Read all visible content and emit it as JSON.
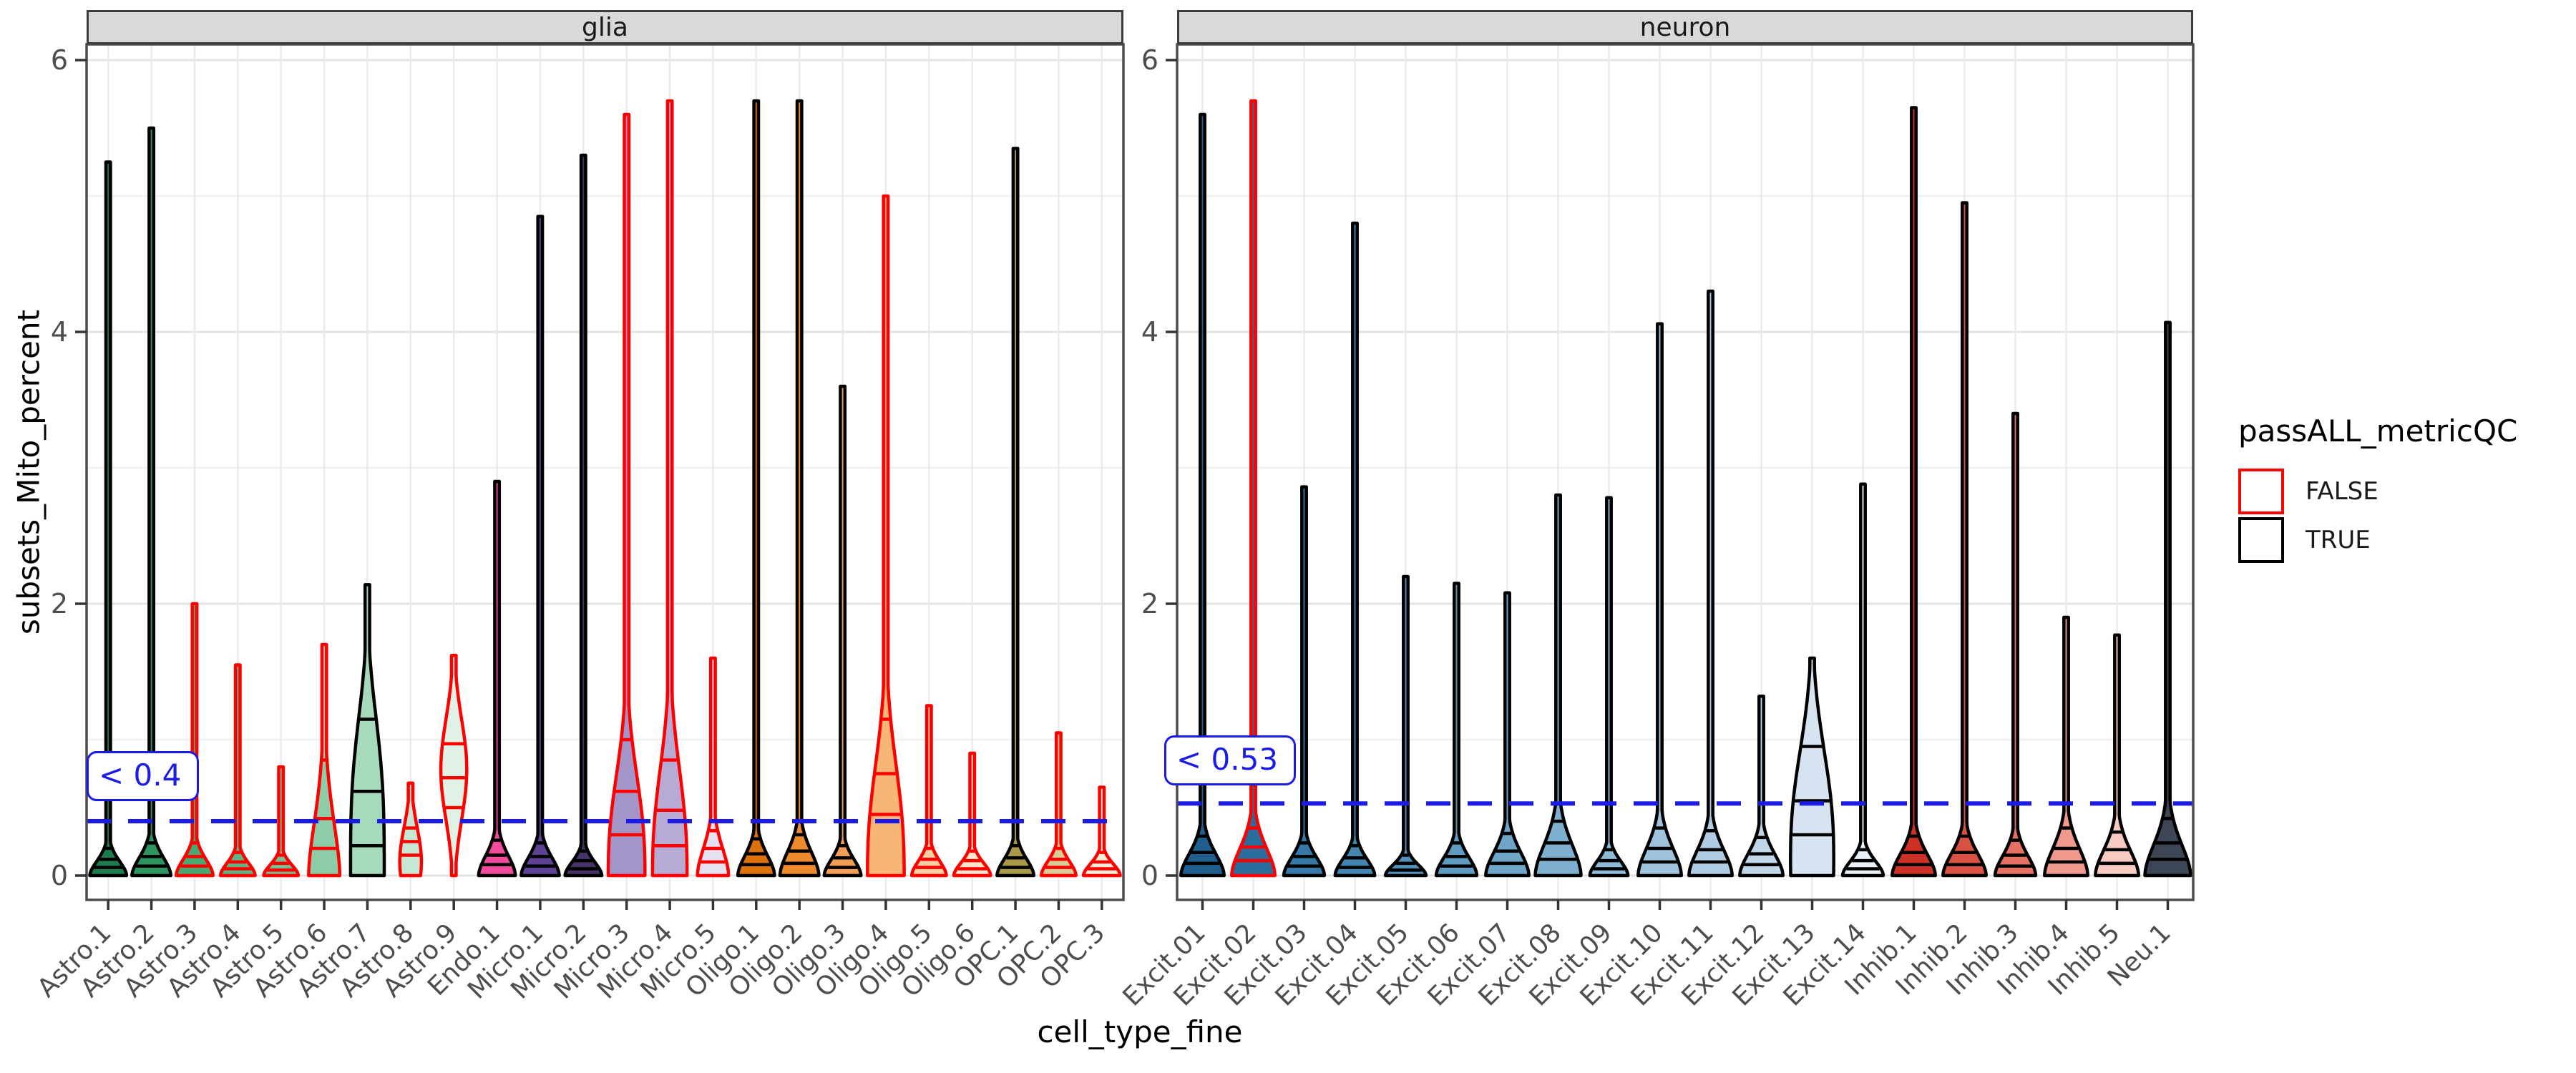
{
  "chart_data": {
    "type": "violin",
    "xlabel": "cell_type_fine",
    "ylabel": "subsets_Mito_percent",
    "y_ticks": [
      0,
      2,
      4,
      6
    ],
    "y_minor_gridlines": [
      1,
      3,
      5
    ],
    "ylim": [
      0,
      6.2
    ],
    "legend": {
      "title": "passALL_metricQC",
      "entries": [
        {
          "label": "FALSE",
          "color": "#FF0000"
        },
        {
          "label": "TRUE",
          "color": "#000000"
        }
      ]
    },
    "colors": {
      "threshold_blue": "#1B1BE8",
      "grid_major": "#E4E4E4",
      "grid_minor": "#F0F0F0",
      "grid_vertical": "#EBEBEB",
      "panel_border": "#4D4D4D",
      "strip_bg": "#D9D9D9",
      "tick_text": "#4D4D4D",
      "outline_true": "#000000",
      "outline_false": "#FF0000"
    },
    "facets": [
      {
        "label": "glia",
        "threshold": {
          "value": 0.4,
          "label": "< 0.4"
        },
        "violins": [
          {
            "label": "Astro.1",
            "fill": "#1E7B4D",
            "pass": true,
            "max": 5.25,
            "b": 0.16,
            "w": 0.85,
            "q": [
              0.06,
              0.12,
              0.2
            ]
          },
          {
            "label": "Astro.2",
            "fill": "#2F9560",
            "pass": true,
            "max": 5.5,
            "b": 0.2,
            "w": 0.9,
            "q": [
              0.07,
              0.14,
              0.24
            ]
          },
          {
            "label": "Astro.3",
            "fill": "#49A973",
            "pass": false,
            "max": 2.0,
            "b": 0.18,
            "w": 0.85,
            "q": [
              0.07,
              0.14,
              0.24
            ]
          },
          {
            "label": "Astro.4",
            "fill": "#5FB685",
            "pass": false,
            "max": 1.55,
            "b": 0.14,
            "w": 0.8,
            "q": [
              0.05,
              0.1,
              0.17
            ]
          },
          {
            "label": "Astro.5",
            "fill": "#74C193",
            "pass": false,
            "max": 0.8,
            "b": 0.12,
            "w": 0.8,
            "q": [
              0.04,
              0.09,
              0.15
            ]
          },
          {
            "label": "Astro.6",
            "fill": "#8CCDA7",
            "pass": false,
            "max": 1.7,
            "b": 0.62,
            "p": 1.7,
            "w": 0.72,
            "q": [
              0.2,
              0.42,
              0.85
            ]
          },
          {
            "label": "Astro.7",
            "fill": "#A7D9BB",
            "pass": true,
            "max": 2.14,
            "b": 1.32,
            "p": 3.2,
            "w": 0.78,
            "q": [
              0.22,
              0.62,
              1.15
            ]
          },
          {
            "label": "Astro.8",
            "fill": "#C6E7D1",
            "pass": false,
            "max": 0.68,
            "b": 0.36,
            "p": 2.0,
            "c": 0.1,
            "w": 0.5,
            "q": [
              0.15,
              0.25,
              0.35
            ]
          },
          {
            "label": "Astro.9",
            "fill": "#E0F2E6",
            "pass": false,
            "max": 1.62,
            "b": 0.52,
            "p": 2.0,
            "c": 0.78,
            "w": 0.6,
            "q": [
              0.5,
              0.72,
              0.97
            ]
          },
          {
            "label": "Endo.1",
            "fill": "#F24B9B",
            "pass": true,
            "max": 2.9,
            "b": 0.22,
            "w": 0.85,
            "q": [
              0.08,
              0.15,
              0.26
            ]
          },
          {
            "label": "Micro.1",
            "fill": "#5E4394",
            "pass": true,
            "max": 4.85,
            "b": 0.2,
            "w": 0.88,
            "q": [
              0.07,
              0.14,
              0.24
            ]
          },
          {
            "label": "Micro.2",
            "fill": "#473366",
            "pass": true,
            "max": 5.3,
            "b": 0.15,
            "w": 0.85,
            "q": [
              0.05,
              0.11,
              0.18
            ]
          },
          {
            "label": "Micro.3",
            "fill": "#A495C9",
            "pass": false,
            "max": 5.6,
            "b": 0.92,
            "p": 2.4,
            "w": 0.85,
            "q": [
              0.3,
              0.62,
              1.0
            ]
          },
          {
            "label": "Micro.4",
            "fill": "#B7AAD4",
            "pass": false,
            "max": 5.7,
            "b": 0.98,
            "p": 2.4,
            "w": 0.8,
            "q": [
              0.22,
              0.48,
              0.85
            ]
          },
          {
            "label": "Micro.5",
            "fill": "#E6E1F2",
            "pass": false,
            "max": 1.6,
            "b": 0.3,
            "w": 0.72,
            "q": [
              0.1,
              0.2,
              0.33
            ]
          },
          {
            "label": "Oligo.1",
            "fill": "#DD720C",
            "pass": true,
            "max": 5.7,
            "b": 0.22,
            "w": 0.85,
            "q": [
              0.08,
              0.16,
              0.27
            ]
          },
          {
            "label": "Oligo.2",
            "fill": "#EE8A2E",
            "pass": true,
            "max": 5.7,
            "b": 0.26,
            "w": 0.9,
            "q": [
              0.09,
              0.18,
              0.3
            ]
          },
          {
            "label": "Oligo.3",
            "fill": "#F29E55",
            "pass": true,
            "max": 3.6,
            "b": 0.18,
            "w": 0.85,
            "q": [
              0.06,
              0.13,
              0.22
            ]
          },
          {
            "label": "Oligo.4",
            "fill": "#F7B578",
            "pass": false,
            "max": 5.0,
            "b": 1.02,
            "p": 2.4,
            "w": 0.85,
            "q": [
              0.45,
              0.75,
              1.15
            ]
          },
          {
            "label": "Oligo.5",
            "fill": "#FACFA3",
            "pass": false,
            "max": 1.25,
            "b": 0.16,
            "w": 0.8,
            "q": [
              0.06,
              0.12,
              0.2
            ]
          },
          {
            "label": "Oligo.6",
            "fill": "#FDE7CF",
            "pass": false,
            "max": 0.9,
            "b": 0.14,
            "w": 0.85,
            "q": [
              0.05,
              0.11,
              0.18
            ]
          },
          {
            "label": "OPC.1",
            "fill": "#A99A4A",
            "pass": true,
            "max": 5.35,
            "b": 0.18,
            "w": 0.85,
            "q": [
              0.06,
              0.13,
              0.22
            ]
          },
          {
            "label": "OPC.2",
            "fill": "#D6CD96",
            "pass": false,
            "max": 1.05,
            "b": 0.16,
            "w": 0.8,
            "q": [
              0.06,
              0.12,
              0.2
            ]
          },
          {
            "label": "OPC.3",
            "fill": "#F2EFD8",
            "pass": false,
            "max": 0.65,
            "b": 0.13,
            "w": 0.85,
            "q": [
              0.05,
              0.1,
              0.17
            ]
          }
        ]
      },
      {
        "label": "neuron",
        "threshold": {
          "value": 0.53,
          "label": "< 0.53"
        },
        "violins": [
          {
            "label": "Excit.01",
            "fill": "#1F5F8E",
            "pass": true,
            "max": 5.6,
            "b": 0.24,
            "w": 0.85,
            "q": [
              0.09,
              0.17,
              0.29
            ]
          },
          {
            "label": "Excit.02",
            "fill": "#2A6C9C",
            "pass": false,
            "max": 5.7,
            "b": 0.3,
            "w": 0.85,
            "q": [
              0.11,
              0.21,
              0.35
            ]
          },
          {
            "label": "Excit.03",
            "fill": "#3679A9",
            "pass": true,
            "max": 2.86,
            "b": 0.2,
            "w": 0.8,
            "q": [
              0.07,
              0.14,
              0.24
            ]
          },
          {
            "label": "Excit.04",
            "fill": "#4486B2",
            "pass": true,
            "max": 4.8,
            "b": 0.18,
            "w": 0.78,
            "q": [
              0.06,
              0.13,
              0.22
            ]
          },
          {
            "label": "Excit.05",
            "fill": "#5292BA",
            "pass": true,
            "max": 2.2,
            "b": 0.12,
            "w": 0.8,
            "q": [
              0.04,
              0.09,
              0.15
            ]
          },
          {
            "label": "Excit.06",
            "fill": "#609CC1",
            "pass": true,
            "max": 2.15,
            "b": 0.2,
            "w": 0.8,
            "q": [
              0.07,
              0.14,
              0.24
            ]
          },
          {
            "label": "Excit.07",
            "fill": "#6FA6C8",
            "pass": true,
            "max": 2.08,
            "b": 0.26,
            "w": 0.85,
            "q": [
              0.09,
              0.18,
              0.31
            ]
          },
          {
            "label": "Excit.08",
            "fill": "#7FB0CF",
            "pass": true,
            "max": 2.8,
            "b": 0.34,
            "w": 0.9,
            "q": [
              0.12,
              0.24,
              0.4
            ]
          },
          {
            "label": "Excit.09",
            "fill": "#8FBAD6",
            "pass": true,
            "max": 2.78,
            "b": 0.16,
            "w": 0.75,
            "q": [
              0.05,
              0.11,
              0.19
            ]
          },
          {
            "label": "Excit.10",
            "fill": "#9FC3DC",
            "pass": true,
            "max": 4.06,
            "b": 0.3,
            "w": 0.85,
            "q": [
              0.1,
              0.2,
              0.35
            ]
          },
          {
            "label": "Excit.11",
            "fill": "#AFCCE2",
            "pass": true,
            "max": 4.3,
            "b": 0.28,
            "w": 0.85,
            "q": [
              0.1,
              0.19,
              0.33
            ]
          },
          {
            "label": "Excit.12",
            "fill": "#BFD5E8",
            "pass": true,
            "max": 1.32,
            "b": 0.24,
            "w": 0.85,
            "q": [
              0.08,
              0.16,
              0.28
            ]
          },
          {
            "label": "Excit.13",
            "fill": "#D5E4F0",
            "pass": true,
            "max": 1.6,
            "b": 1.0,
            "p": 2.4,
            "c": 0.12,
            "w": 0.85,
            "q": [
              0.3,
              0.55,
              0.95
            ]
          },
          {
            "label": "Excit.14",
            "fill": "#E9F1F8",
            "pass": true,
            "max": 2.88,
            "b": 0.16,
            "w": 0.8,
            "q": [
              0.05,
              0.11,
              0.19
            ]
          },
          {
            "label": "Inhib.1",
            "fill": "#CE3025",
            "pass": true,
            "max": 5.65,
            "b": 0.24,
            "w": 0.85,
            "q": [
              0.08,
              0.17,
              0.29
            ]
          },
          {
            "label": "Inhib.2",
            "fill": "#DA5243",
            "pass": true,
            "max": 4.95,
            "b": 0.24,
            "w": 0.85,
            "q": [
              0.08,
              0.17,
              0.29
            ]
          },
          {
            "label": "Inhib.3",
            "fill": "#E57163",
            "pass": true,
            "max": 3.4,
            "b": 0.22,
            "w": 0.8,
            "q": [
              0.07,
              0.15,
              0.26
            ]
          },
          {
            "label": "Inhib.4",
            "fill": "#EF9A8C",
            "pass": true,
            "max": 1.9,
            "b": 0.3,
            "w": 0.85,
            "q": [
              0.1,
              0.2,
              0.35
            ]
          },
          {
            "label": "Inhib.5",
            "fill": "#F8CBC2",
            "pass": true,
            "max": 1.77,
            "b": 0.28,
            "w": 0.85,
            "q": [
              0.09,
              0.19,
              0.32
            ]
          },
          {
            "label": "Neu.1",
            "fill": "#3C4654",
            "pass": true,
            "max": 4.07,
            "b": 0.34,
            "w": 0.9,
            "q": [
              0.12,
              0.24,
              0.42
            ]
          }
        ]
      }
    ]
  }
}
